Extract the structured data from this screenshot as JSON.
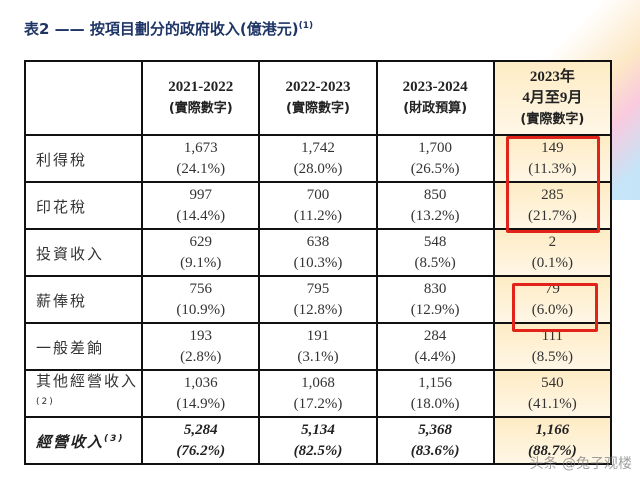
{
  "title": "表2 —— 按項目劃分的政府收入(億港元)",
  "title_note": "(1)",
  "columns": [
    {
      "line1": "2021-2022",
      "line2": "(實際數字)"
    },
    {
      "line1": "2022-2023",
      "line2": "(實際數字)"
    },
    {
      "line1": "2023-2024",
      "line2": "(財政預算)"
    },
    {
      "line1": "2023年",
      "line1b": "4月至9月",
      "line2": "(實際數字)"
    }
  ],
  "rows": [
    {
      "label": "利得稅",
      "note": "",
      "cells": [
        [
          "1,673",
          "(24.1%)"
        ],
        [
          "1,742",
          "(28.0%)"
        ],
        [
          "1,700",
          "(26.5%)"
        ],
        [
          "149",
          "(11.3%)"
        ]
      ]
    },
    {
      "label": "印花稅",
      "note": "",
      "cells": [
        [
          "997",
          "(14.4%)"
        ],
        [
          "700",
          "(11.2%)"
        ],
        [
          "850",
          "(13.2%)"
        ],
        [
          "285",
          "(21.7%)"
        ]
      ]
    },
    {
      "label": "投資收入",
      "note": "",
      "cells": [
        [
          "629",
          "(9.1%)"
        ],
        [
          "638",
          "(10.3%)"
        ],
        [
          "548",
          "(8.5%)"
        ],
        [
          "2",
          "(0.1%)"
        ]
      ]
    },
    {
      "label": "薪俸稅",
      "note": "",
      "cells": [
        [
          "756",
          "(10.9%)"
        ],
        [
          "795",
          "(12.8%)"
        ],
        [
          "830",
          "(12.9%)"
        ],
        [
          "79",
          "(6.0%)"
        ]
      ]
    },
    {
      "label": "一般差餉",
      "note": "",
      "cells": [
        [
          "193",
          "(2.8%)"
        ],
        [
          "191",
          "(3.1%)"
        ],
        [
          "284",
          "(4.4%)"
        ],
        [
          "111",
          "(8.5%)"
        ]
      ]
    },
    {
      "label": "其他經營收入",
      "note": "(2)",
      "cells": [
        [
          "1,036",
          "(14.9%)"
        ],
        [
          "1,068",
          "(17.2%)"
        ],
        [
          "1,156",
          "(18.0%)"
        ],
        [
          "540",
          "(41.1%)"
        ]
      ]
    },
    {
      "label": "經營收入",
      "note": "(3)",
      "cells": [
        [
          "5,284",
          "(76.2%)"
        ],
        [
          "5,134",
          "(82.5%)"
        ],
        [
          "5,368",
          "(83.6%)"
        ],
        [
          "1,166",
          "(88.7%)"
        ]
      ]
    }
  ],
  "watermark": "头条 @兔子观楼",
  "highlight_color": "#e2231a"
}
